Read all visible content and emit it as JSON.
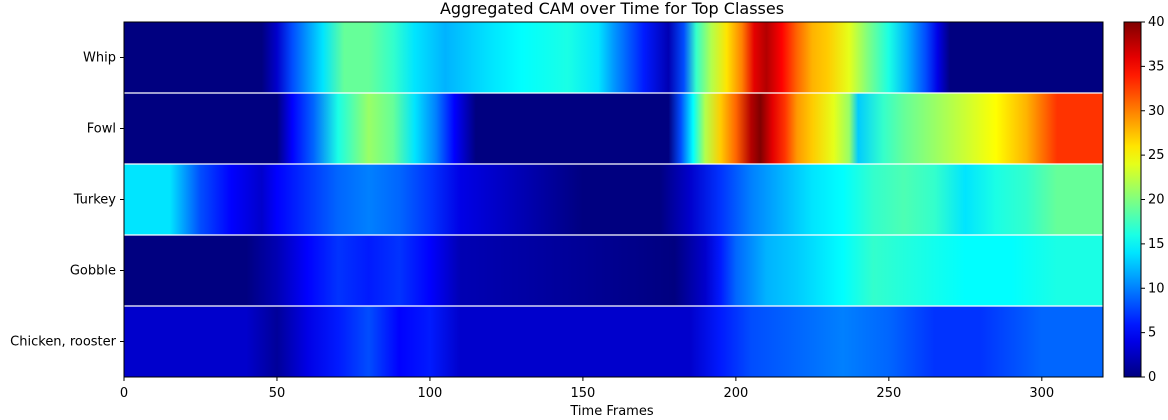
{
  "chart_data": {
    "type": "heatmap",
    "title": "Aggregated CAM over Time for Top Classes",
    "xlabel": "Time Frames",
    "ylabel": "",
    "xlim": [
      0,
      320
    ],
    "xticks": [
      0,
      50,
      100,
      150,
      200,
      250,
      300
    ],
    "rows": [
      "Whip",
      "Fowl",
      "Turkey",
      "Gobble",
      "Chicken, rooster"
    ],
    "colormap": "jet",
    "colorbar": {
      "min": 0,
      "max": 40,
      "ticks": [
        0,
        5,
        10,
        15,
        20,
        25,
        30,
        35,
        40
      ]
    },
    "grid": false,
    "series": [
      {
        "name": "Whip",
        "x": [
          0,
          45,
          50,
          55,
          65,
          72,
          80,
          88,
          95,
          105,
          120,
          130,
          145,
          155,
          160,
          170,
          178,
          183,
          187,
          192,
          197,
          202,
          206,
          210,
          215,
          220,
          225,
          230,
          237,
          243,
          250,
          256,
          262,
          266,
          270,
          320
        ],
        "values": [
          0,
          0,
          3,
          8,
          14,
          19,
          19,
          17,
          14,
          12,
          14,
          15,
          16,
          14,
          11,
          6,
          2,
          8,
          17,
          22,
          26,
          30,
          36,
          38,
          35,
          31,
          28,
          27,
          24,
          20,
          16,
          12,
          8,
          4,
          0,
          0
        ]
      },
      {
        "name": "Fowl",
        "x": [
          0,
          50,
          55,
          62,
          70,
          80,
          88,
          95,
          102,
          108,
          115,
          178,
          182,
          186,
          190,
          195,
          200,
          205,
          208,
          212,
          216,
          220,
          225,
          232,
          237,
          240,
          248,
          255,
          265,
          275,
          285,
          295,
          305,
          320
        ],
        "values": [
          0,
          0,
          5,
          9,
          16,
          21,
          19,
          14,
          10,
          5,
          0,
          0,
          8,
          15,
          22,
          27,
          31,
          38,
          40,
          36,
          33,
          29,
          27,
          24,
          21,
          13,
          17,
          19,
          21,
          23,
          25,
          28,
          33,
          33
        ]
      },
      {
        "name": "Turkey",
        "x": [
          0,
          15,
          25,
          35,
          45,
          50,
          60,
          70,
          80,
          90,
          100,
          110,
          150,
          175,
          185,
          195,
          205,
          215,
          225,
          235,
          245,
          255,
          265,
          275,
          285,
          295,
          305,
          320
        ],
        "values": [
          14,
          14,
          8,
          5,
          3,
          5,
          7,
          9,
          10,
          9,
          7,
          4,
          0,
          0,
          3,
          7,
          10,
          12,
          14,
          15,
          17,
          18,
          17,
          14,
          16,
          17,
          19,
          19
        ]
      },
      {
        "name": "Gobble",
        "x": [
          0,
          40,
          50,
          60,
          70,
          80,
          90,
          100,
          110,
          180,
          190,
          195,
          200,
          210,
          220,
          235,
          245,
          260,
          275,
          290,
          305,
          320
        ],
        "values": [
          0,
          0,
          2,
          5,
          7,
          6,
          7,
          5,
          2,
          0,
          3,
          6,
          9,
          12,
          13,
          15,
          17,
          16,
          15,
          15,
          16,
          16
        ]
      },
      {
        "name": "Chicken, rooster",
        "x": [
          0,
          40,
          50,
          60,
          70,
          80,
          90,
          100,
          110,
          175,
          185,
          195,
          205,
          220,
          235,
          250,
          265,
          280,
          300,
          320
        ],
        "values": [
          3,
          3,
          1,
          4,
          6,
          8,
          5,
          6,
          3,
          3,
          3,
          6,
          8,
          9,
          10,
          9,
          7,
          7,
          9,
          9
        ]
      }
    ]
  }
}
